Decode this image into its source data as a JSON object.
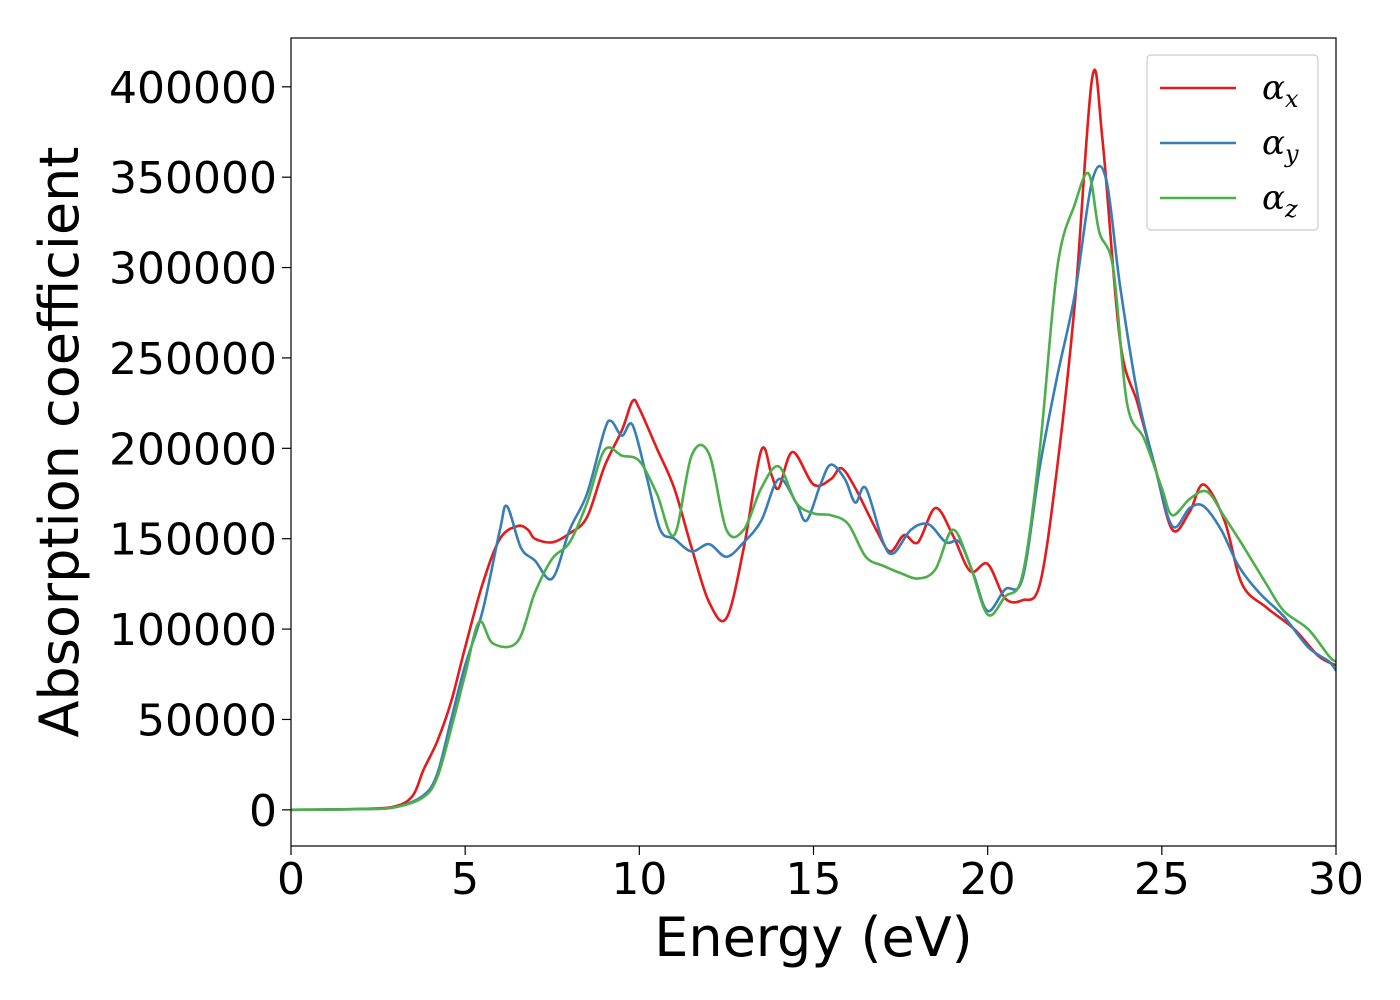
{
  "chart_data": {
    "type": "line",
    "xlabel": "Energy (eV)",
    "ylabel": "Absorption coefficient",
    "xlim": [
      0,
      30
    ],
    "ylim": [
      -20000,
      427000
    ],
    "xticks": [
      0,
      5,
      10,
      15,
      20,
      25,
      30
    ],
    "yticks": [
      0,
      50000,
      100000,
      150000,
      200000,
      250000,
      300000,
      350000,
      400000
    ],
    "grid": false,
    "legend_position": "upper-right",
    "series": [
      {
        "name": "α",
        "subscript": "x",
        "color": "#e41a1c",
        "points": [
          [
            0,
            0
          ],
          [
            2,
            500
          ],
          [
            3,
            2000
          ],
          [
            3.5,
            8000
          ],
          [
            3.8,
            22000
          ],
          [
            4.2,
            38000
          ],
          [
            4.6,
            60000
          ],
          [
            5,
            90000
          ],
          [
            5.5,
            125000
          ],
          [
            6,
            150000
          ],
          [
            6.5,
            157000
          ],
          [
            6.8,
            155000
          ],
          [
            7,
            150000
          ],
          [
            7.5,
            148000
          ],
          [
            8,
            153000
          ],
          [
            8.5,
            162000
          ],
          [
            9,
            190000
          ],
          [
            9.5,
            210000
          ],
          [
            9.8,
            226000
          ],
          [
            10,
            222000
          ],
          [
            10.5,
            200000
          ],
          [
            11,
            178000
          ],
          [
            11.5,
            145000
          ],
          [
            12,
            115000
          ],
          [
            12.5,
            106000
          ],
          [
            13,
            145000
          ],
          [
            13.5,
            199000
          ],
          [
            13.8,
            185000
          ],
          [
            14,
            178000
          ],
          [
            14.4,
            198000
          ],
          [
            15,
            180000
          ],
          [
            15.5,
            183000
          ],
          [
            15.8,
            189000
          ],
          [
            16.2,
            178000
          ],
          [
            16.8,
            155000
          ],
          [
            17.2,
            143000
          ],
          [
            17.6,
            152000
          ],
          [
            18,
            148000
          ],
          [
            18.5,
            167000
          ],
          [
            19,
            152000
          ],
          [
            19.5,
            132000
          ],
          [
            20,
            136000
          ],
          [
            20.5,
            117000
          ],
          [
            21,
            116000
          ],
          [
            21.5,
            125000
          ],
          [
            22,
            190000
          ],
          [
            22.5,
            280000
          ],
          [
            23,
            405000
          ],
          [
            23.3,
            370000
          ],
          [
            23.8,
            260000
          ],
          [
            24.3,
            225000
          ],
          [
            24.8,
            190000
          ],
          [
            25.3,
            155000
          ],
          [
            25.8,
            165000
          ],
          [
            26.2,
            180000
          ],
          [
            26.8,
            160000
          ],
          [
            27.3,
            125000
          ],
          [
            28,
            112000
          ],
          [
            28.8,
            100000
          ],
          [
            29.5,
            85000
          ],
          [
            30,
            80000
          ]
        ]
      },
      {
        "name": "α",
        "subscript": "y",
        "color": "#377eb8",
        "points": [
          [
            0,
            0
          ],
          [
            2,
            400
          ],
          [
            3,
            1500
          ],
          [
            3.8,
            8000
          ],
          [
            4.2,
            20000
          ],
          [
            4.6,
            50000
          ],
          [
            5,
            80000
          ],
          [
            5.5,
            110000
          ],
          [
            6,
            155000
          ],
          [
            6.2,
            168000
          ],
          [
            6.6,
            145000
          ],
          [
            7,
            138000
          ],
          [
            7.5,
            128000
          ],
          [
            8,
            155000
          ],
          [
            8.5,
            175000
          ],
          [
            9,
            210000
          ],
          [
            9.2,
            215000
          ],
          [
            9.5,
            207000
          ],
          [
            9.8,
            213000
          ],
          [
            10.2,
            185000
          ],
          [
            10.6,
            155000
          ],
          [
            11,
            150000
          ],
          [
            11.5,
            143000
          ],
          [
            12,
            147000
          ],
          [
            12.5,
            140000
          ],
          [
            13,
            148000
          ],
          [
            13.5,
            160000
          ],
          [
            14,
            183000
          ],
          [
            14.5,
            170000
          ],
          [
            14.8,
            160000
          ],
          [
            15.2,
            180000
          ],
          [
            15.5,
            191000
          ],
          [
            15.9,
            183000
          ],
          [
            16.2,
            170000
          ],
          [
            16.5,
            178000
          ],
          [
            17,
            148000
          ],
          [
            17.3,
            142000
          ],
          [
            17.8,
            155000
          ],
          [
            18.3,
            158000
          ],
          [
            18.8,
            148000
          ],
          [
            19.2,
            148000
          ],
          [
            19.6,
            130000
          ],
          [
            20,
            110000
          ],
          [
            20.5,
            122000
          ],
          [
            21,
            128000
          ],
          [
            21.5,
            190000
          ],
          [
            22,
            240000
          ],
          [
            22.5,
            285000
          ],
          [
            23,
            348000
          ],
          [
            23.4,
            349000
          ],
          [
            23.8,
            290000
          ],
          [
            24.3,
            230000
          ],
          [
            24.8,
            190000
          ],
          [
            25.3,
            157000
          ],
          [
            25.8,
            167000
          ],
          [
            26.2,
            168000
          ],
          [
            26.7,
            155000
          ],
          [
            27.2,
            135000
          ],
          [
            27.8,
            120000
          ],
          [
            28.5,
            107000
          ],
          [
            29.2,
            90000
          ],
          [
            29.8,
            82000
          ],
          [
            30,
            77000
          ]
        ]
      },
      {
        "name": "α",
        "subscript": "z",
        "color": "#4daf4a",
        "points": [
          [
            0,
            0
          ],
          [
            2,
            400
          ],
          [
            3,
            1500
          ],
          [
            3.8,
            7000
          ],
          [
            4.2,
            18000
          ],
          [
            4.6,
            45000
          ],
          [
            5,
            75000
          ],
          [
            5.4,
            104000
          ],
          [
            5.8,
            92000
          ],
          [
            6.5,
            93000
          ],
          [
            7,
            120000
          ],
          [
            7.5,
            139000
          ],
          [
            8,
            148000
          ],
          [
            8.5,
            170000
          ],
          [
            9,
            199000
          ],
          [
            9.5,
            196000
          ],
          [
            10,
            193000
          ],
          [
            10.5,
            175000
          ],
          [
            11,
            152000
          ],
          [
            11.5,
            196000
          ],
          [
            12,
            197000
          ],
          [
            12.5,
            155000
          ],
          [
            13,
            155000
          ],
          [
            13.5,
            178000
          ],
          [
            14,
            190000
          ],
          [
            14.5,
            170000
          ],
          [
            15,
            164000
          ],
          [
            15.5,
            163000
          ],
          [
            16,
            158000
          ],
          [
            16.5,
            140000
          ],
          [
            17,
            135000
          ],
          [
            17.5,
            131000
          ],
          [
            18,
            128000
          ],
          [
            18.5,
            133000
          ],
          [
            19,
            155000
          ],
          [
            19.5,
            135000
          ],
          [
            20,
            108000
          ],
          [
            20.5,
            118000
          ],
          [
            21,
            130000
          ],
          [
            21.5,
            200000
          ],
          [
            22,
            300000
          ],
          [
            22.5,
            335000
          ],
          [
            22.9,
            352000
          ],
          [
            23.2,
            320000
          ],
          [
            23.6,
            300000
          ],
          [
            24,
            225000
          ],
          [
            24.5,
            205000
          ],
          [
            25,
            178000
          ],
          [
            25.3,
            163000
          ],
          [
            25.8,
            172000
          ],
          [
            26.3,
            176000
          ],
          [
            26.8,
            162000
          ],
          [
            27.3,
            147000
          ],
          [
            28,
            125000
          ],
          [
            28.5,
            110000
          ],
          [
            29.2,
            100000
          ],
          [
            29.8,
            85000
          ],
          [
            30,
            82000
          ]
        ]
      }
    ]
  }
}
